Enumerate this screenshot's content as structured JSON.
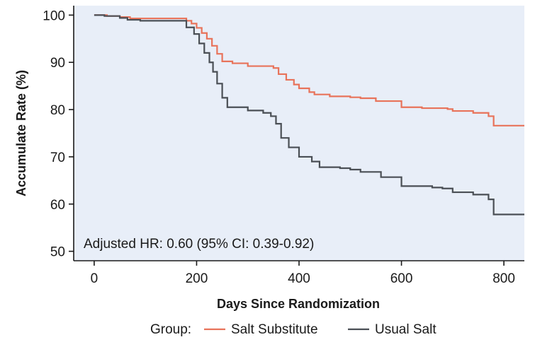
{
  "chart_data": {
    "type": "line",
    "title": "",
    "xlabel": "Days Since Randomization",
    "ylabel": "Accumulate Rate (%)",
    "xlim": [
      -40,
      840
    ],
    "ylim": [
      48,
      102
    ],
    "xticks": [
      "0",
      "200",
      "400",
      "600",
      "800"
    ],
    "yticks": [
      "50",
      "60",
      "70",
      "80",
      "90",
      "100"
    ],
    "annotation": "Adjusted HR: 0.60 (95% CI: 0.39-0.92)",
    "legend": {
      "title": "Group:",
      "position": "bottom"
    },
    "colors": {
      "plot_bg": "#e8eef8",
      "salt_substitute": "#e8735a",
      "usual_salt": "#4a4f55"
    },
    "series": [
      {
        "name": "Salt Substitute",
        "x": [
          0,
          25,
          50,
          70,
          170,
          180,
          190,
          200,
          210,
          220,
          230,
          240,
          250,
          270,
          300,
          350,
          360,
          375,
          390,
          400,
          420,
          430,
          460,
          500,
          520,
          550,
          600,
          640,
          690,
          700,
          740,
          770,
          780,
          840
        ],
        "y": [
          100,
          99.8,
          99.6,
          99.3,
          99.3,
          98.8,
          98.2,
          97.3,
          96.2,
          95,
          93.5,
          91.8,
          90.2,
          89.8,
          89.2,
          88.8,
          87.5,
          86.3,
          85.3,
          84.5,
          83.7,
          83.2,
          82.8,
          82.6,
          82.4,
          81.8,
          80.5,
          80.3,
          80.1,
          79.7,
          79.3,
          78.6,
          76.6,
          76.6
        ]
      },
      {
        "name": "Usual Salt",
        "x": [
          0,
          20,
          50,
          65,
          90,
          170,
          180,
          195,
          205,
          215,
          225,
          232,
          240,
          250,
          260,
          300,
          330,
          345,
          355,
          365,
          380,
          400,
          425,
          440,
          480,
          500,
          520,
          560,
          600,
          660,
          680,
          700,
          740,
          770,
          780,
          840
        ],
        "y": [
          100,
          99.8,
          99.4,
          99,
          98.8,
          98.8,
          97.4,
          96,
          94,
          92,
          90,
          88,
          85.5,
          82.5,
          80.5,
          79.8,
          79.3,
          78.6,
          77,
          74,
          72,
          70,
          69,
          67.8,
          67.6,
          67.3,
          66.8,
          65.7,
          63.8,
          63.5,
          63.3,
          62.5,
          62,
          61,
          57.8,
          57.8
        ]
      }
    ]
  }
}
